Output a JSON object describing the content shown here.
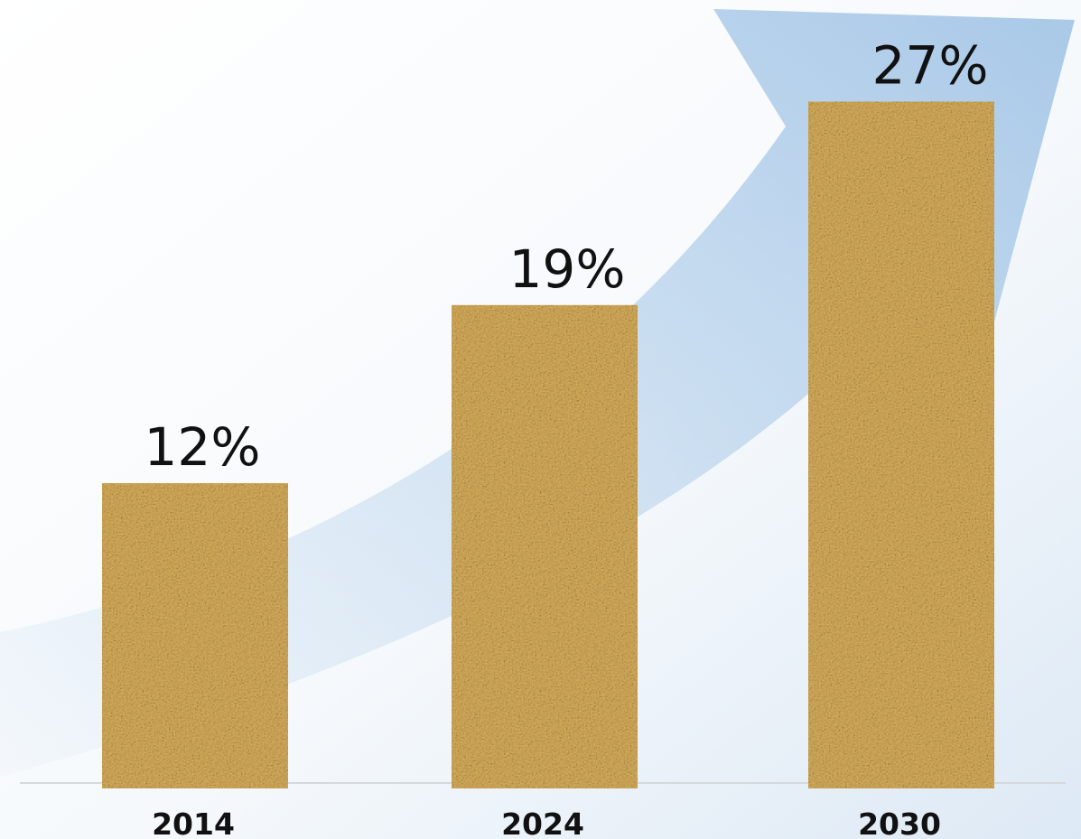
{
  "chart_data": {
    "type": "bar",
    "categories": [
      "2014",
      "2024",
      "2030"
    ],
    "values": [
      12,
      19,
      27
    ],
    "value_labels": [
      "12%",
      "19%",
      "27%"
    ],
    "title": "",
    "xlabel": "",
    "ylabel": "",
    "ylim": [
      0,
      30
    ],
    "grid": false,
    "legend": "none"
  },
  "colors": {
    "bar_base": "#d6aa55",
    "bar_dark": "#b9893a",
    "bar_light": "#efcf7e",
    "arrow": "#a9c9e8",
    "background_tint": "#dde9f5",
    "axis_line": "#d5d9de",
    "text": "#111111"
  },
  "decorations": {
    "background_icon": "upward-curved-arrow-icon",
    "bar_fill": "sand-texture"
  }
}
